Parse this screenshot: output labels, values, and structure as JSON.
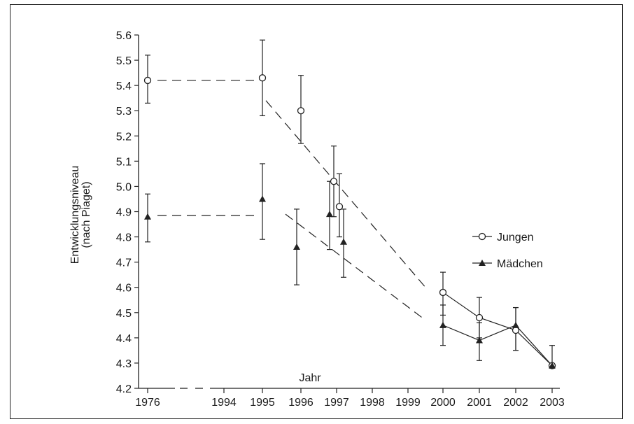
{
  "chart_data": {
    "type": "scatter",
    "xlabel": "Jahr",
    "ylabel_line1": "Entwicklungsniveau",
    "ylabel_line2": "(nach Piaget)",
    "ylim": [
      4.2,
      5.6
    ],
    "y_ticks": [
      "5.6",
      "5.5",
      "5.4",
      "5.3",
      "5.2",
      "5.1",
      "5.0",
      "4.9",
      "4.8",
      "4.7",
      "4.6",
      "4.5",
      "4.4",
      "4.3",
      "4.2"
    ],
    "x_ticks": [
      "1976",
      "1994",
      "1995",
      "1996",
      "1997",
      "1998",
      "1999",
      "2000",
      "2001",
      "2002",
      "2003"
    ],
    "axis_break_between": [
      "1976",
      "1994"
    ],
    "legend_placement": "right",
    "series": [
      {
        "name": "Jungen",
        "marker": "open-circle",
        "points": [
          {
            "x": "1976",
            "y": 5.42,
            "err_low": 5.33,
            "err_high": 5.52
          },
          {
            "x": "1995",
            "y": 5.43,
            "err_low": 5.28,
            "err_high": 5.58
          },
          {
            "x": "1996",
            "y": 5.3,
            "err_low": 5.17,
            "err_high": 5.44
          },
          {
            "x": "1997",
            "y": 5.02,
            "err_low": 4.88,
            "err_high": 5.16
          },
          {
            "x": "1997",
            "y": 4.92,
            "err_low": 4.8,
            "err_high": 5.05
          },
          {
            "x": "2000",
            "y": 4.58,
            "err_low": 4.49,
            "err_high": 4.66
          },
          {
            "x": "2001",
            "y": 4.48,
            "err_low": 4.4,
            "err_high": 4.56
          },
          {
            "x": "2002",
            "y": 4.43,
            "err_low": 4.35,
            "err_high": 4.52
          },
          {
            "x": "2003",
            "y": 4.29,
            "err_low": 4.28,
            "err_high": 4.37
          }
        ],
        "connected_from": "2000"
      },
      {
        "name": "Mädchen",
        "marker": "filled-triangle",
        "points": [
          {
            "x": "1976",
            "y": 4.88,
            "err_low": 4.78,
            "err_high": 4.97
          },
          {
            "x": "1995",
            "y": 4.95,
            "err_low": 4.79,
            "err_high": 5.09
          },
          {
            "x": "1996",
            "y": 4.76,
            "err_low": 4.61,
            "err_high": 4.91
          },
          {
            "x": "1997",
            "y": 4.89,
            "err_low": 4.75,
            "err_high": 5.02
          },
          {
            "x": "1997",
            "y": 4.78,
            "err_low": 4.64,
            "err_high": 4.91
          },
          {
            "x": "2000",
            "y": 4.45,
            "err_low": 4.37,
            "err_high": 4.53
          },
          {
            "x": "2001",
            "y": 4.39,
            "err_low": 4.31,
            "err_high": 4.46
          },
          {
            "x": "2002",
            "y": 4.45,
            "err_low": 4.35,
            "err_high": 4.52
          },
          {
            "x": "2003",
            "y": 4.29,
            "err_low": 4.28,
            "err_high": 4.29
          }
        ],
        "connected_from": "2000"
      }
    ],
    "dashed_trends": [
      {
        "series": "Jungen",
        "from": {
          "x": "1976",
          "y": 5.42
        },
        "to": {
          "x": "1995",
          "y": 5.42
        }
      },
      {
        "series": "Jungen",
        "from": {
          "x": "1995",
          "y": 5.34
        },
        "to": {
          "x": "2000",
          "y": 4.6
        }
      },
      {
        "series": "Mädchen",
        "from": {
          "x": "1976",
          "y": 4.885
        },
        "to": {
          "x": "1995",
          "y": 4.885
        }
      },
      {
        "series": "Mädchen",
        "from": {
          "x": "1996",
          "y": 4.89
        },
        "to": {
          "x": "2000",
          "y": 4.47
        }
      }
    ]
  }
}
